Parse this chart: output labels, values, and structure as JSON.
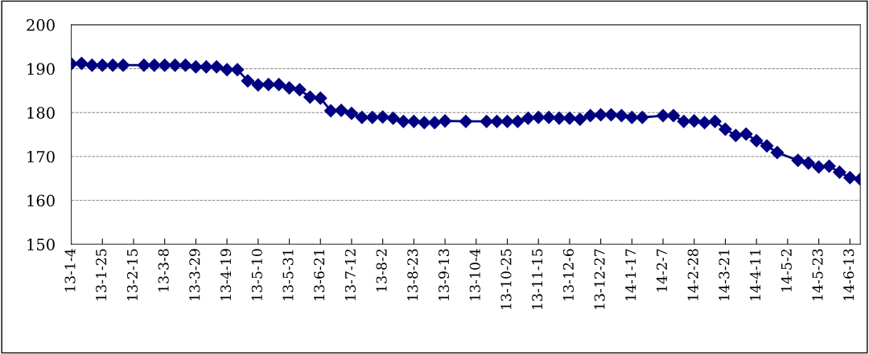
{
  "chart_data": {
    "type": "line",
    "categories": [
      "13-1-4",
      null,
      null,
      "13-1-25",
      null,
      null,
      "13-2-15",
      null,
      null,
      "13-3-8",
      null,
      null,
      "13-3-29",
      null,
      null,
      "13-4-19",
      null,
      null,
      "13-5-10",
      null,
      null,
      "13-5-31",
      null,
      null,
      "13-6-21",
      null,
      null,
      "13-7-12",
      null,
      null,
      "13-8-2",
      null,
      null,
      "13-8-23",
      null,
      null,
      "13-9-13",
      null,
      null,
      "13-10-4",
      null,
      null,
      "13-10-25",
      null,
      null,
      "13-11-15",
      null,
      null,
      "13-12-6",
      null,
      null,
      "13-12-27",
      null,
      null,
      "14-1-17",
      null,
      null,
      "14-2-7",
      null,
      null,
      "14-2-28",
      null,
      null,
      "14-3-21",
      null,
      null,
      "14-4-11",
      null,
      null,
      "14-5-2",
      null,
      null,
      "14-5-23",
      null,
      null,
      "14-6-13",
      null
    ],
    "series": [
      {
        "color": "#000080",
        "values": [
          191.1,
          191.2,
          190.8,
          190.8,
          190.8,
          190.8,
          null,
          190.8,
          190.8,
          190.8,
          190.8,
          190.8,
          190.4,
          190.4,
          190.4,
          189.8,
          189.8,
          187.2,
          186.3,
          186.4,
          186.4,
          185.6,
          185.2,
          183.5,
          183.3,
          180.4,
          180.5,
          179.8,
          178.9,
          178.9,
          179.0,
          178.7,
          178.0,
          178.0,
          177.7,
          177.7,
          178.1,
          null,
          178.0,
          null,
          178.0,
          178.0,
          178.0,
          178.0,
          178.7,
          178.9,
          178.9,
          178.7,
          178.7,
          178.5,
          179.3,
          179.5,
          179.5,
          179.3,
          178.9,
          178.9,
          null,
          179.3,
          179.3,
          178.0,
          178.1,
          177.7,
          178.0,
          176.2,
          174.8,
          175.1,
          173.6,
          172.4,
          170.9,
          null,
          169.1,
          168.5,
          167.6,
          167.8,
          166.4,
          165.2,
          164.8
        ]
      }
    ],
    "ylim": [
      150,
      200
    ],
    "yticks": [
      150,
      160,
      170,
      180,
      190,
      200
    ],
    "grid": "y",
    "marker": "diamond",
    "line_style": "solid",
    "legend": false
  }
}
